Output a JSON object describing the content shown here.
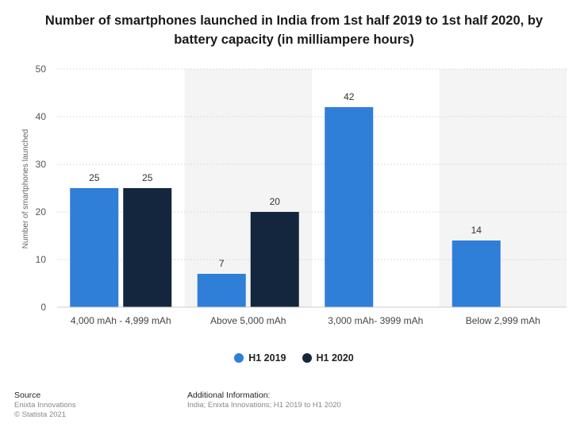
{
  "chart_data": {
    "type": "bar",
    "title": "Number of smartphones launched in India from 1st half 2019 to 1st half 2020, by battery capacity (in milliampere hours)",
    "categories": [
      "4,000 mAh - 4,999 mAh",
      "Above 5,000 mAh",
      "3,000 mAh- 3999 mAh",
      "Below 2,999 mAh"
    ],
    "series": [
      {
        "name": "H1 2019",
        "color": "#2f7ed8",
        "values": [
          25,
          7,
          42,
          14
        ]
      },
      {
        "name": "H1 2020",
        "color": "#13263d",
        "values": [
          25,
          20,
          null,
          null
        ]
      }
    ],
    "xlabel": "",
    "ylabel": "Number of smartphones launched",
    "ylim": [
      0,
      50
    ],
    "yticks": [
      0,
      10,
      20,
      30,
      40,
      50
    ],
    "grid": true,
    "legend_position": "bottom"
  },
  "legend": {
    "items": [
      {
        "label": "H1 2019",
        "color": "#2f7ed8"
      },
      {
        "label": "H1 2020",
        "color": "#13263d"
      }
    ]
  },
  "footer": {
    "source_heading": "Source",
    "source_lines": [
      "Enixta Innovations",
      "© Statista 2021"
    ],
    "info_heading": "Additional Information:",
    "info_text": "India; Enixta Innovations; H1 2019 to H1 2020"
  }
}
